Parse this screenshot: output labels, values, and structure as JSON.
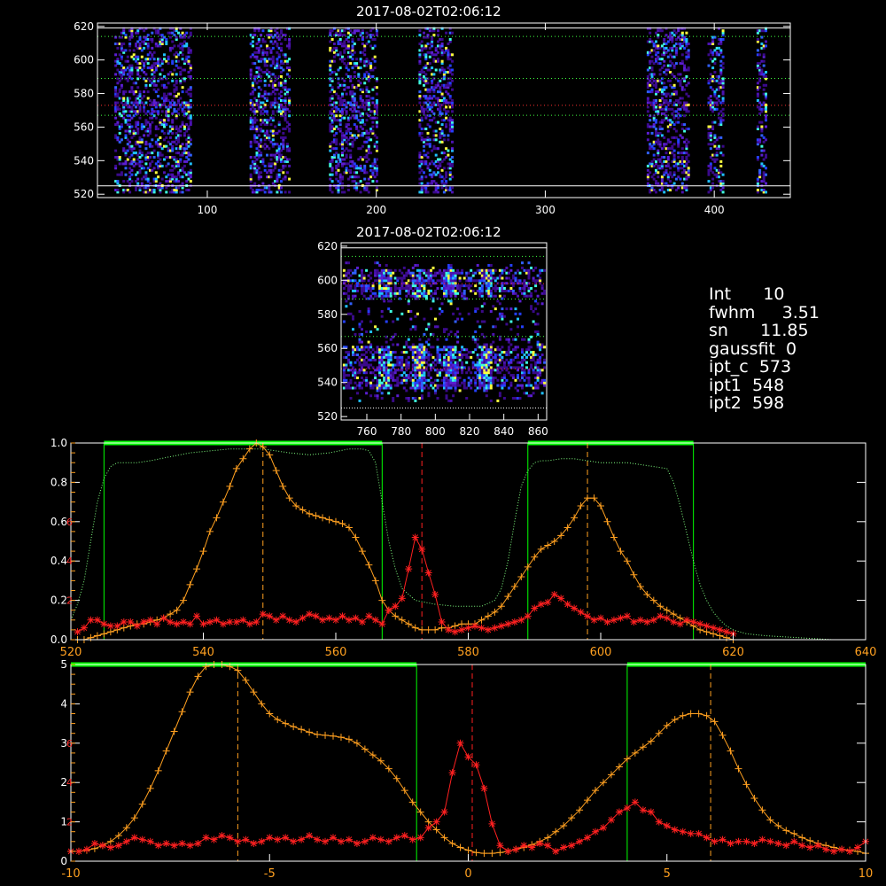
{
  "panel_top": {
    "title": "2017-08-02T02:06:12",
    "x_ticks": [
      "100",
      "200",
      "300",
      "400"
    ],
    "y_ticks": [
      "520",
      "540",
      "560",
      "580",
      "600",
      "620"
    ]
  },
  "panel_mid": {
    "title": "2017-08-02T02:06:12",
    "x_ticks": [
      "760",
      "780",
      "800",
      "820",
      "840",
      "860"
    ],
    "y_ticks": [
      "520",
      "540",
      "560",
      "580",
      "600",
      "620"
    ]
  },
  "info": {
    "int": "Int      10",
    "fwhm": "fwhm     3.51",
    "sn": "sn      11.85",
    "gaussfit": "gaussfit  0",
    "ipt_c": "ipt_c  573",
    "ipt1": "ipt1  548",
    "ipt2": "ipt2  598"
  },
  "colors": {
    "spectrum": "#ffa020",
    "profile": "#ff2020",
    "filter": "#00ff00",
    "transmission": "#80ff80",
    "axis": "#ffffff",
    "red_axis": "#ff3030",
    "orange_axis": "#ffa020"
  },
  "chart_data": [
    {
      "type": "heatmap",
      "title": "2017-08-02T02:06:12",
      "xlim": [
        35,
        445
      ],
      "ylim": [
        518,
        622
      ],
      "description_levels": "reference lines at y = 525, 567, 573, 589, 614, 619",
      "column_bands_x": [
        [
          45,
          90
        ],
        [
          125,
          148
        ],
        [
          172,
          200
        ],
        [
          225,
          245
        ],
        [
          360,
          385
        ],
        [
          396,
          405
        ],
        [
          425,
          430
        ]
      ]
    },
    {
      "type": "heatmap",
      "title": "2017-08-02T02:06:12",
      "xlim": [
        745,
        865
      ],
      "ylim": [
        518,
        622
      ]
    },
    {
      "type": "line",
      "xlim": [
        520,
        640
      ],
      "x_ticks": [
        "520",
        "540",
        "560",
        "580",
        "600",
        "620",
        "640"
      ],
      "y_ticks_left": [
        "0.0",
        "0.2",
        "0.4",
        "0.6",
        "0.8",
        "1.0"
      ],
      "y_ticks_red": [
        "2",
        "4",
        "6"
      ],
      "vlines": [
        549,
        573,
        598
      ],
      "filter_windows": [
        [
          525,
          567
        ],
        [
          589,
          614
        ]
      ],
      "series": [
        {
          "x": [
            521,
            522,
            523,
            524,
            525,
            526,
            527,
            528,
            529,
            530,
            531,
            532,
            533,
            534,
            535,
            536,
            537,
            538,
            539,
            540,
            541,
            542,
            543,
            544,
            545,
            546,
            547,
            548,
            549,
            550,
            551,
            552,
            553,
            554,
            555,
            556,
            557,
            558,
            559,
            560,
            561,
            562,
            563,
            564,
            565,
            566,
            567,
            568,
            569,
            570,
            571,
            572,
            573,
            574,
            575,
            576,
            577,
            578,
            579,
            580,
            581,
            582,
            583,
            584,
            585,
            586,
            587,
            588,
            589,
            590,
            591,
            592,
            593,
            594,
            595,
            596,
            597,
            598,
            599,
            600,
            601,
            602,
            603,
            604,
            605,
            606,
            607,
            608,
            609,
            610,
            611,
            612,
            613,
            614,
            615,
            616,
            617,
            618,
            619,
            620
          ],
          "values": [
            0.0,
            0.0,
            0.01,
            0.02,
            0.03,
            0.04,
            0.05,
            0.06,
            0.07,
            0.08,
            0.08,
            0.09,
            0.1,
            0.11,
            0.13,
            0.15,
            0.2,
            0.28,
            0.36,
            0.45,
            0.55,
            0.62,
            0.7,
            0.78,
            0.87,
            0.92,
            0.97,
            1.0,
            0.98,
            0.94,
            0.86,
            0.78,
            0.72,
            0.68,
            0.66,
            0.64,
            0.63,
            0.62,
            0.61,
            0.6,
            0.59,
            0.57,
            0.52,
            0.45,
            0.38,
            0.3,
            0.2,
            0.15,
            0.12,
            0.1,
            0.08,
            0.06,
            0.05,
            0.05,
            0.05,
            0.06,
            0.06,
            0.07,
            0.08,
            0.08,
            0.08,
            0.1,
            0.12,
            0.14,
            0.17,
            0.22,
            0.27,
            0.32,
            0.37,
            0.42,
            0.46,
            0.48,
            0.5,
            0.53,
            0.57,
            0.62,
            0.68,
            0.72,
            0.72,
            0.68,
            0.6,
            0.52,
            0.45,
            0.4,
            0.33,
            0.27,
            0.23,
            0.2,
            0.17,
            0.15,
            0.13,
            0.11,
            0.09,
            0.07,
            0.05,
            0.04,
            0.03,
            0.02,
            0.01,
            0.0
          ]
        },
        {
          "x": [
            521,
            522,
            523,
            524,
            525,
            526,
            527,
            528,
            529,
            530,
            531,
            532,
            533,
            534,
            535,
            536,
            537,
            538,
            539,
            540,
            541,
            542,
            543,
            544,
            545,
            546,
            547,
            548,
            549,
            550,
            551,
            552,
            553,
            554,
            555,
            556,
            557,
            558,
            559,
            560,
            561,
            562,
            563,
            564,
            565,
            566,
            567,
            568,
            569,
            570,
            571,
            572,
            573,
            574,
            575,
            576,
            577,
            578,
            579,
            580,
            581,
            582,
            583,
            584,
            585,
            586,
            587,
            588,
            589,
            590,
            591,
            592,
            593,
            594,
            595,
            596,
            597,
            598,
            599,
            600,
            601,
            602,
            603,
            604,
            605,
            606,
            607,
            608,
            609,
            610,
            611,
            612,
            613,
            614,
            615,
            616,
            617,
            618,
            619,
            620
          ],
          "values": [
            0.4,
            0.6,
            1.0,
            1.0,
            0.8,
            0.7,
            0.7,
            0.9,
            0.9,
            0.7,
            0.9,
            1.0,
            0.8,
            1.1,
            0.9,
            0.8,
            0.9,
            0.8,
            1.2,
            0.8,
            0.9,
            1.0,
            0.8,
            0.9,
            0.9,
            1.0,
            0.8,
            0.9,
            1.3,
            1.2,
            1.0,
            1.2,
            1.0,
            0.9,
            1.1,
            1.3,
            1.2,
            1.0,
            1.1,
            1.0,
            1.2,
            1.0,
            1.1,
            0.9,
            1.2,
            1.0,
            0.8,
            1.5,
            1.7,
            2.1,
            3.6,
            5.2,
            4.6,
            3.4,
            2.3,
            0.9,
            0.5,
            0.4,
            0.5,
            0.6,
            0.7,
            0.6,
            0.5,
            0.6,
            0.7,
            0.8,
            0.9,
            1.0,
            1.2,
            1.6,
            1.8,
            1.9,
            2.3,
            2.1,
            1.8,
            1.6,
            1.4,
            1.2,
            1.0,
            1.1,
            0.9,
            1.0,
            1.1,
            1.2,
            0.9,
            1.0,
            0.9,
            1.0,
            1.2,
            1.1,
            0.9,
            0.8,
            1.0,
            0.9,
            0.8,
            0.7,
            0.6,
            0.5,
            0.4,
            0.3
          ]
        },
        {
          "x": [
            520,
            521,
            522,
            523,
            524,
            525,
            526,
            527,
            528,
            530,
            532,
            535,
            538,
            541,
            544,
            547,
            549,
            551,
            553,
            556,
            559,
            562,
            564,
            565,
            566,
            567,
            568,
            569,
            570,
            572,
            575,
            578,
            580,
            582,
            584,
            585,
            586,
            587,
            588,
            589,
            590,
            591,
            592,
            594,
            596,
            598,
            600,
            602,
            604,
            606,
            608,
            610,
            611,
            612,
            613,
            614,
            615,
            616,
            617,
            618,
            619,
            620,
            622,
            625,
            630,
            635,
            640
          ],
          "values": [
            0.1,
            0.18,
            0.3,
            0.5,
            0.7,
            0.82,
            0.88,
            0.9,
            0.9,
            0.9,
            0.91,
            0.93,
            0.95,
            0.96,
            0.97,
            0.97,
            0.97,
            0.96,
            0.95,
            0.94,
            0.95,
            0.97,
            0.97,
            0.96,
            0.9,
            0.7,
            0.5,
            0.36,
            0.26,
            0.2,
            0.18,
            0.17,
            0.17,
            0.17,
            0.2,
            0.26,
            0.4,
            0.6,
            0.78,
            0.86,
            0.9,
            0.91,
            0.91,
            0.92,
            0.92,
            0.91,
            0.9,
            0.9,
            0.9,
            0.89,
            0.88,
            0.87,
            0.8,
            0.68,
            0.54,
            0.4,
            0.28,
            0.2,
            0.14,
            0.1,
            0.07,
            0.05,
            0.03,
            0.02,
            0.01,
            0.0,
            0.0
          ]
        }
      ]
    },
    {
      "type": "line",
      "xlim": [
        -10,
        10
      ],
      "x_ticks": [
        "-10",
        "-5",
        "0",
        "5",
        "10"
      ],
      "y_ticks_left": [
        "0",
        "1",
        "2",
        "3",
        "4",
        "5"
      ],
      "y_ticks_red": [
        "2",
        "4",
        "6"
      ],
      "vlines": [
        -5.8,
        0.1,
        6.1
      ],
      "filter_windows": [
        [
          -10,
          -1.3
        ],
        [
          4,
          10
        ]
      ],
      "series": [
        {
          "x": [
            -10,
            -9.8,
            -9.6,
            -9.4,
            -9.2,
            -9.0,
            -8.8,
            -8.6,
            -8.4,
            -8.2,
            -8.0,
            -7.8,
            -7.6,
            -7.4,
            -7.2,
            -7.0,
            -6.8,
            -6.6,
            -6.4,
            -6.2,
            -6.0,
            -5.8,
            -5.6,
            -5.4,
            -5.2,
            -5.0,
            -4.8,
            -4.6,
            -4.4,
            -4.2,
            -4.0,
            -3.8,
            -3.6,
            -3.4,
            -3.2,
            -3.0,
            -2.8,
            -2.6,
            -2.4,
            -2.2,
            -2.0,
            -1.8,
            -1.6,
            -1.4,
            -1.2,
            -1.0,
            -0.8,
            -0.6,
            -0.4,
            -0.2,
            0.0,
            0.2,
            0.4,
            0.6,
            0.8,
            1.0,
            1.2,
            1.4,
            1.6,
            1.8,
            2.0,
            2.2,
            2.4,
            2.6,
            2.8,
            3.0,
            3.2,
            3.4,
            3.6,
            3.8,
            4.0,
            4.2,
            4.4,
            4.6,
            4.8,
            5.0,
            5.2,
            5.4,
            5.6,
            5.8,
            6.0,
            6.2,
            6.4,
            6.6,
            6.8,
            7.0,
            7.2,
            7.4,
            7.6,
            7.8,
            8.0,
            8.2,
            8.4,
            8.6,
            8.8,
            9.0,
            9.2,
            9.4,
            9.6,
            9.8,
            10.0
          ],
          "values": [
            0.25,
            0.25,
            0.28,
            0.32,
            0.4,
            0.5,
            0.65,
            0.85,
            1.1,
            1.45,
            1.85,
            2.3,
            2.8,
            3.3,
            3.8,
            4.3,
            4.7,
            4.95,
            5.0,
            5.0,
            4.95,
            4.85,
            4.6,
            4.3,
            4.0,
            3.75,
            3.6,
            3.5,
            3.42,
            3.35,
            3.28,
            3.22,
            3.2,
            3.18,
            3.15,
            3.1,
            3.0,
            2.85,
            2.7,
            2.55,
            2.35,
            2.1,
            1.8,
            1.5,
            1.25,
            1.0,
            0.8,
            0.6,
            0.45,
            0.35,
            0.28,
            0.22,
            0.2,
            0.2,
            0.22,
            0.25,
            0.3,
            0.35,
            0.42,
            0.5,
            0.6,
            0.75,
            0.9,
            1.1,
            1.3,
            1.55,
            1.8,
            2.0,
            2.2,
            2.4,
            2.6,
            2.75,
            2.9,
            3.05,
            3.25,
            3.45,
            3.6,
            3.7,
            3.75,
            3.75,
            3.7,
            3.55,
            3.2,
            2.8,
            2.35,
            1.95,
            1.6,
            1.3,
            1.05,
            0.9,
            0.78,
            0.7,
            0.6,
            0.52,
            0.45,
            0.4,
            0.35,
            0.3,
            0.28,
            0.25,
            0.2
          ]
        },
        {
          "x": [
            -10,
            -9.8,
            -9.6,
            -9.4,
            -9.2,
            -9.0,
            -8.8,
            -8.6,
            -8.4,
            -8.2,
            -8.0,
            -7.8,
            -7.6,
            -7.4,
            -7.2,
            -7.0,
            -6.8,
            -6.6,
            -6.4,
            -6.2,
            -6.0,
            -5.8,
            -5.6,
            -5.4,
            -5.2,
            -5.0,
            -4.8,
            -4.6,
            -4.4,
            -4.2,
            -4.0,
            -3.8,
            -3.6,
            -3.4,
            -3.2,
            -3.0,
            -2.8,
            -2.6,
            -2.4,
            -2.2,
            -2.0,
            -1.8,
            -1.6,
            -1.4,
            -1.2,
            -1.0,
            -0.8,
            -0.6,
            -0.4,
            -0.2,
            0.0,
            0.2,
            0.4,
            0.6,
            0.8,
            1.0,
            1.2,
            1.4,
            1.6,
            1.8,
            2.0,
            2.2,
            2.4,
            2.6,
            2.8,
            3.0,
            3.2,
            3.4,
            3.6,
            3.8,
            4.0,
            4.2,
            4.4,
            4.6,
            4.8,
            5.0,
            5.2,
            5.4,
            5.6,
            5.8,
            6.0,
            6.2,
            6.4,
            6.6,
            6.8,
            7.0,
            7.2,
            7.4,
            7.6,
            7.8,
            8.0,
            8.2,
            8.4,
            8.6,
            8.8,
            9.0,
            9.2,
            9.4,
            9.6,
            9.8,
            10.0
          ],
          "values": [
            0.5,
            0.5,
            0.6,
            0.9,
            0.8,
            0.7,
            0.8,
            1.0,
            1.2,
            1.1,
            1.0,
            0.8,
            0.9,
            0.8,
            0.9,
            0.8,
            0.9,
            1.2,
            1.1,
            1.3,
            1.2,
            1.0,
            1.1,
            0.9,
            1.0,
            1.2,
            1.1,
            1.2,
            1.0,
            1.1,
            1.3,
            1.1,
            1.0,
            1.2,
            1.0,
            1.1,
            0.9,
            1.0,
            1.2,
            1.1,
            1.0,
            1.2,
            1.3,
            1.1,
            1.2,
            1.7,
            2.0,
            2.5,
            4.5,
            6.0,
            5.3,
            4.9,
            3.7,
            1.9,
            0.8,
            0.5,
            0.6,
            0.8,
            0.7,
            0.9,
            0.8,
            0.5,
            0.7,
            0.8,
            1.0,
            1.2,
            1.5,
            1.7,
            2.1,
            2.5,
            2.7,
            3.0,
            2.6,
            2.5,
            2.0,
            1.8,
            1.6,
            1.5,
            1.4,
            1.4,
            1.2,
            1.0,
            1.1,
            0.9,
            1.0,
            1.0,
            0.9,
            1.1,
            1.0,
            0.9,
            0.8,
            1.0,
            0.8,
            0.7,
            0.8,
            0.6,
            0.5,
            0.6,
            0.5,
            0.7,
            1.0
          ]
        }
      ]
    }
  ]
}
